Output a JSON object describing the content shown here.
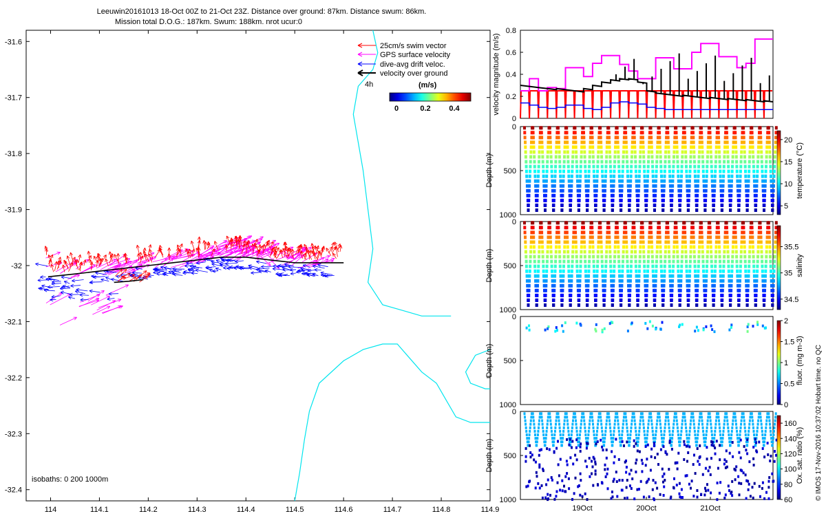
{
  "figure": {
    "title_line1": "Leeuwin20161013 18-Oct 00Z to 21-Oct 23Z. Distance over ground: 87km. Distance swum: 86km.",
    "title_line2": "Mission total D.O.G.: 187km. Swum: 188km. nrot ucur:0",
    "footer_vertical": "© IMOS 17-Nov-2016 10:37:02 Hobart time. no QC",
    "colors": {
      "swim": "#ff0000",
      "gps": "#ff00ff",
      "drift": "#0000ff",
      "ground": "#000000",
      "coast": "#00e5ee"
    }
  },
  "chart_data": [
    {
      "id": "map",
      "type": "scatter",
      "title": "",
      "xlabel": "",
      "ylabel": "",
      "xlim": [
        113.95,
        114.9
      ],
      "ylim": [
        -32.42,
        -31.58
      ],
      "x_ticks": [
        "114",
        "114.1",
        "114.2",
        "114.3",
        "114.4",
        "114.5",
        "114.6",
        "114.7",
        "114.8",
        "114.9"
      ],
      "y_ticks": [
        "-31.6",
        "-31.7",
        "-31.8",
        "-31.9",
        "-32",
        "-32.1",
        "-32.2",
        "-32.3",
        "-32.4"
      ],
      "legend": {
        "placement": "top-right",
        "items": [
          {
            "label": "25cm/s swim vector",
            "color": "#ff0000"
          },
          {
            "label": "GPS surface velocity",
            "color": "#ff00ff"
          },
          {
            "label": "dive-avg drift veloc.",
            "color": "#0000ff"
          },
          {
            "label": "velocity over ground",
            "color": "#000000"
          }
        ],
        "interval_label": "4h"
      },
      "colorbar": {
        "title": "(m/s)",
        "ticks": [
          "0",
          "0.2",
          "0.4"
        ],
        "range": [
          0,
          0.5
        ]
      },
      "isobath_label": "isobaths: 0   200   1000m",
      "track": [
        [
          113.995,
          -32.02
        ],
        [
          114.05,
          -32.015
        ],
        [
          114.1,
          -32.01
        ],
        [
          114.15,
          -32.005
        ],
        [
          114.2,
          -32.0
        ],
        [
          114.25,
          -31.995
        ],
        [
          114.3,
          -31.99
        ],
        [
          114.35,
          -31.985
        ],
        [
          114.4,
          -31.985
        ],
        [
          114.45,
          -31.99
        ],
        [
          114.5,
          -31.995
        ],
        [
          114.55,
          -31.995
        ],
        [
          114.6,
          -31.995
        ]
      ],
      "inner_track": [
        [
          114.13,
          -32.03
        ],
        [
          114.16,
          -32.028
        ],
        [
          114.19,
          -32.025
        ]
      ],
      "coastline_north": [
        [
          114.66,
          -31.58
        ],
        [
          114.67,
          -31.62
        ],
        [
          114.66,
          -31.65
        ],
        [
          114.63,
          -31.68
        ],
        [
          114.62,
          -31.73
        ],
        [
          114.63,
          -31.78
        ],
        [
          114.64,
          -31.83
        ],
        [
          114.65,
          -31.9
        ],
        [
          114.66,
          -31.97
        ],
        [
          114.65,
          -32.03
        ],
        [
          114.68,
          -32.07
        ],
        [
          114.72,
          -32.08
        ],
        [
          114.76,
          -32.09
        ],
        [
          114.79,
          -32.09
        ],
        [
          114.82,
          -32.09
        ]
      ],
      "coastline_south": [
        [
          114.5,
          -32.42
        ],
        [
          114.51,
          -32.37
        ],
        [
          114.52,
          -32.31
        ],
        [
          114.53,
          -32.26
        ],
        [
          114.55,
          -32.21
        ],
        [
          114.6,
          -32.17
        ],
        [
          114.64,
          -32.15
        ],
        [
          114.68,
          -32.14
        ],
        [
          114.71,
          -32.14
        ],
        [
          114.73,
          -32.16
        ],
        [
          114.76,
          -32.19
        ],
        [
          114.79,
          -32.21
        ],
        [
          114.81,
          -32.24
        ],
        [
          114.83,
          -32.27
        ],
        [
          114.86,
          -32.28
        ],
        [
          114.9,
          -32.28
        ]
      ],
      "coastline_east": [
        [
          114.9,
          -32.15
        ],
        [
          114.87,
          -32.16
        ],
        [
          114.85,
          -32.19
        ],
        [
          114.86,
          -32.21
        ],
        [
          114.89,
          -32.22
        ],
        [
          114.9,
          -32.22
        ]
      ]
    },
    {
      "id": "velocity",
      "type": "line",
      "ylabel": "velocity magnitude (m/s)",
      "ylim": [
        0,
        0.8
      ],
      "y_ticks": [
        "0",
        "0.2",
        "0.4",
        "0.6",
        "0.8"
      ],
      "series": [
        {
          "color": "#ff00ff",
          "values": [
            0.25,
            0.36,
            0.25,
            0.28,
            0.27,
            0.46,
            0.46,
            0.38,
            0.5,
            0.57,
            0.57,
            0.49,
            0.43,
            0.36,
            0.36,
            0.55,
            0.55,
            0.45,
            0.45,
            0.6,
            0.68,
            0.68,
            0.56,
            0.56,
            0.46,
            0.5,
            0.72,
            0.72
          ]
        },
        {
          "color": "#000000",
          "values": [
            0.3,
            0.29,
            0.28,
            0.27,
            0.27,
            0.26,
            0.25,
            0.27,
            0.3,
            0.33,
            0.35,
            0.36,
            0.36,
            0.33,
            0.25,
            0.23,
            0.22,
            0.21,
            0.21,
            0.2,
            0.19,
            0.19,
            0.18,
            0.18,
            0.17,
            0.17,
            0.16,
            0.16
          ]
        },
        {
          "color": "#0000ff",
          "values": [
            0.14,
            0.12,
            0.1,
            0.09,
            0.1,
            0.12,
            0.12,
            0.09,
            0.08,
            0.1,
            0.14,
            0.15,
            0.14,
            0.13,
            0.1,
            0.09,
            0.08,
            0.08,
            0.08,
            0.08,
            0.08,
            0.08,
            0.08,
            0.08,
            0.08,
            0.08,
            0.08,
            0.08
          ]
        },
        {
          "color": "#ff0000",
          "values": [
            0.25,
            0.25,
            0.25,
            0.25,
            0.25,
            0.25,
            0.25,
            0.25,
            0.25,
            0.25,
            0.25,
            0.25,
            0.25,
            0.25,
            0.25,
            0.25,
            0.25,
            0.25,
            0.25,
            0.25,
            0.25,
            0.25,
            0.25,
            0.25,
            0.25,
            0.25,
            0.25,
            0.25
          ]
        }
      ]
    },
    {
      "id": "temperature",
      "type": "scatter",
      "ylabel": "Depth (m)",
      "ylim": [
        1000,
        0
      ],
      "y_ticks": [
        "0",
        "500",
        "1000"
      ],
      "colorbar": {
        "label": "temperature (°C)",
        "ticks": [
          "20",
          "15",
          "10",
          "5"
        ],
        "range": [
          3,
          22
        ]
      },
      "dives": 30
    },
    {
      "id": "salinity",
      "type": "scatter",
      "ylabel": "Depth (m)",
      "ylim": [
        1000,
        0
      ],
      "y_ticks": [
        "0",
        "500",
        "1000"
      ],
      "colorbar": {
        "label": "salinity",
        "ticks": [
          "35.5",
          "35",
          "34.5"
        ],
        "range": [
          34.3,
          35.9
        ]
      },
      "dives": 30
    },
    {
      "id": "fluorescence",
      "type": "scatter",
      "ylabel": "Depth (m)",
      "ylim": [
        1000,
        0
      ],
      "y_ticks": [
        "0",
        "500",
        "1000"
      ],
      "colorbar": {
        "label": "fluor. (mg m-3)",
        "ticks": [
          "2",
          "1.5",
          "1",
          "0.5",
          "0"
        ],
        "range": [
          0,
          2
        ]
      },
      "dives": 30
    },
    {
      "id": "oxygen",
      "type": "scatter",
      "ylabel": "Depth (m)",
      "ylim": [
        1000,
        0
      ],
      "y_ticks": [
        "0",
        "500",
        "1000"
      ],
      "x_ticks": [
        "19Oct",
        "20Oct",
        "21Oct"
      ],
      "colorbar": {
        "label": "Ox. sat. ratio (%)",
        "ticks": [
          "160",
          "140",
          "120",
          "100",
          "80",
          "60"
        ],
        "range": [
          60,
          170
        ]
      },
      "dives": 30
    }
  ]
}
